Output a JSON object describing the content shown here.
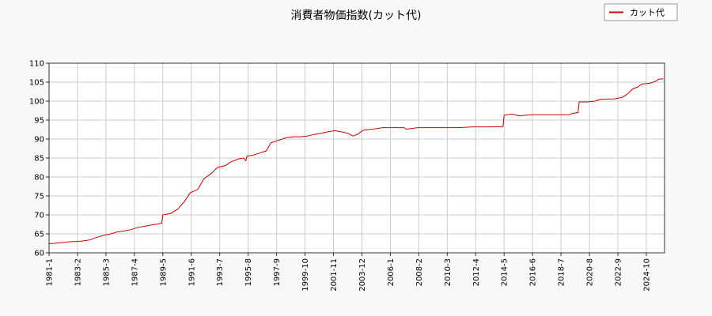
{
  "chart_data": {
    "type": "line",
    "title": "消費者物価指数(カット代)",
    "xlabel": "",
    "ylabel": "",
    "ylim": [
      60,
      110
    ],
    "yticks": [
      60,
      65,
      70,
      75,
      80,
      85,
      90,
      95,
      100,
      105,
      110
    ],
    "xlim": [
      "1981-01",
      "2026-02"
    ],
    "xticks": [
      "1981-1",
      "1983-2",
      "1985-3",
      "1987-4",
      "1989-5",
      "1991-6",
      "1993-7",
      "1995-8",
      "1997-9",
      "1999-10",
      "2001-11",
      "2003-12",
      "2006-1",
      "2008-2",
      "2010-3",
      "2012-4",
      "2014-5",
      "2016-6",
      "2018-7",
      "2020-8",
      "2022-9",
      "2024-10"
    ],
    "grid": true,
    "legend_position": "top-right",
    "series": [
      {
        "name": "カット代",
        "color": "#cc0000",
        "points": [
          [
            "1981-01",
            62.4
          ],
          [
            "1981-06",
            62.5
          ],
          [
            "1982-01",
            62.7
          ],
          [
            "1982-06",
            62.9
          ],
          [
            "1983-01",
            63.0
          ],
          [
            "1983-06",
            63.1
          ],
          [
            "1984-01",
            63.4
          ],
          [
            "1984-06",
            64.0
          ],
          [
            "1985-01",
            64.6
          ],
          [
            "1985-06",
            64.9
          ],
          [
            "1986-01",
            65.5
          ],
          [
            "1986-06",
            65.7
          ],
          [
            "1987-01",
            66.1
          ],
          [
            "1987-06",
            66.6
          ],
          [
            "1988-01",
            67.0
          ],
          [
            "1988-06",
            67.3
          ],
          [
            "1989-01",
            67.6
          ],
          [
            "1989-04",
            67.8
          ],
          [
            "1989-05",
            70.0
          ],
          [
            "1989-12",
            70.4
          ],
          [
            "1990-06",
            71.5
          ],
          [
            "1990-12",
            73.5
          ],
          [
            "1991-05",
            75.8
          ],
          [
            "1991-12",
            76.8
          ],
          [
            "1992-05",
            79.5
          ],
          [
            "1992-12",
            81.0
          ],
          [
            "1993-05",
            82.5
          ],
          [
            "1993-12",
            83.0
          ],
          [
            "1994-05",
            84.0
          ],
          [
            "1994-12",
            84.8
          ],
          [
            "1995-04",
            85.0
          ],
          [
            "1995-06",
            84.3
          ],
          [
            "1995-07",
            85.5
          ],
          [
            "1995-12",
            85.7
          ],
          [
            "1996-06",
            86.3
          ],
          [
            "1996-12",
            86.9
          ],
          [
            "1997-04",
            89.0
          ],
          [
            "1997-12",
            89.8
          ],
          [
            "1998-06",
            90.4
          ],
          [
            "1998-12",
            90.6
          ],
          [
            "1999-06",
            90.6
          ],
          [
            "1999-12",
            90.8
          ],
          [
            "2000-06",
            91.2
          ],
          [
            "2000-12",
            91.5
          ],
          [
            "2001-06",
            91.9
          ],
          [
            "2001-12",
            92.2
          ],
          [
            "2002-06",
            91.9
          ],
          [
            "2002-12",
            91.5
          ],
          [
            "2003-04",
            90.8
          ],
          [
            "2003-08",
            91.2
          ],
          [
            "2004-01",
            92.3
          ],
          [
            "2004-06",
            92.5
          ],
          [
            "2004-12",
            92.7
          ],
          [
            "2005-06",
            93.0
          ],
          [
            "2006-06",
            93.0
          ],
          [
            "2007-01",
            93.0
          ],
          [
            "2007-03",
            92.6
          ],
          [
            "2007-08",
            92.8
          ],
          [
            "2008-01",
            93.0
          ],
          [
            "2009-06",
            93.0
          ],
          [
            "2011-01",
            93.0
          ],
          [
            "2012-01",
            93.2
          ],
          [
            "2013-06",
            93.2
          ],
          [
            "2014-04",
            93.3
          ],
          [
            "2014-05",
            96.3
          ],
          [
            "2014-12",
            96.6
          ],
          [
            "2015-06",
            96.1
          ],
          [
            "2016-01",
            96.3
          ],
          [
            "2016-06",
            96.4
          ],
          [
            "2018-06",
            96.4
          ],
          [
            "2019-01",
            96.4
          ],
          [
            "2019-06",
            96.8
          ],
          [
            "2019-10",
            97.0
          ],
          [
            "2019-11",
            99.8
          ],
          [
            "2020-06",
            99.8
          ],
          [
            "2021-01",
            100.0
          ],
          [
            "2021-06",
            100.5
          ],
          [
            "2022-06",
            100.6
          ],
          [
            "2023-01",
            101.0
          ],
          [
            "2023-06",
            102.0
          ],
          [
            "2023-10",
            103.2
          ],
          [
            "2024-03",
            103.8
          ],
          [
            "2024-06",
            104.5
          ],
          [
            "2025-01",
            104.7
          ],
          [
            "2025-06",
            105.2
          ],
          [
            "2025-09",
            105.8
          ],
          [
            "2026-01",
            105.9
          ]
        ]
      }
    ]
  }
}
